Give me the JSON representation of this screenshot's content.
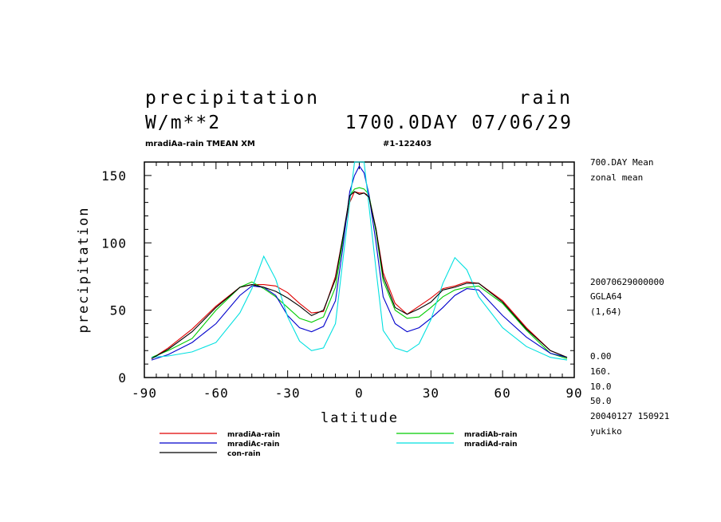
{
  "header": {
    "var_name": "precipitation",
    "var_tag": "rain",
    "units": "W/m**2",
    "date": "1700.0DAY 07/06/29",
    "subtitle": "mradiAa-rain TMEAN XM",
    "run_id": "#1-122403"
  },
  "side_info": {
    "lines_top": [
      "700.DAY Mean",
      "zonal mean"
    ],
    "lines_mid": [
      "20070629000000",
      "GGLA64",
      "(1,64)"
    ],
    "lines_bottom": [
      "0.00",
      "160.",
      "10.0",
      "50.0",
      "20040127 150921",
      "yukiko"
    ]
  },
  "chart_data": {
    "type": "line",
    "xlabel": "latitude",
    "ylabel": "precipitation",
    "xlim": [
      -90,
      90
    ],
    "ylim": [
      0,
      160
    ],
    "xticks": [
      -90,
      -60,
      -30,
      0,
      30,
      60,
      90
    ],
    "yticks": [
      0,
      50,
      100,
      150
    ],
    "x": [
      -87,
      -80,
      -70,
      -60,
      -50,
      -45,
      -40,
      -35,
      -30,
      -25,
      -20,
      -15,
      -10,
      -7,
      -4,
      -2,
      0,
      2,
      4,
      7,
      10,
      15,
      20,
      25,
      30,
      35,
      40,
      45,
      50,
      60,
      70,
      80,
      87
    ],
    "series": [
      {
        "name": "mradiAa-rain",
        "color": "#e00000",
        "values": [
          14,
          22,
          36,
          53,
          67,
          69,
          69,
          68,
          63,
          55,
          48,
          49,
          75,
          103,
          130,
          138,
          137,
          137,
          135,
          110,
          78,
          55,
          47,
          53,
          59,
          66,
          68,
          71,
          70,
          57,
          37,
          20,
          15
        ]
      },
      {
        "name": "mradiAb-rain",
        "color": "#00cc00",
        "values": [
          15,
          20,
          29,
          50,
          67,
          71,
          66,
          60,
          52,
          44,
          41,
          45,
          67,
          100,
          135,
          140,
          141,
          140,
          136,
          108,
          72,
          50,
          44,
          45,
          52,
          60,
          65,
          67,
          68,
          55,
          35,
          18,
          14
        ]
      },
      {
        "name": "mradiAc-rain",
        "color": "#0000cc",
        "values": [
          13,
          17,
          26,
          40,
          61,
          68,
          67,
          61,
          46,
          37,
          34,
          38,
          57,
          95,
          138,
          150,
          157,
          152,
          136,
          100,
          60,
          40,
          34,
          37,
          44,
          52,
          61,
          66,
          65,
          46,
          30,
          18,
          15
        ]
      },
      {
        "name": "mradiAd-rain",
        "color": "#00e0e0",
        "values": [
          15,
          16,
          19,
          26,
          48,
          66,
          90,
          73,
          45,
          27,
          20,
          22,
          40,
          85,
          130,
          160,
          160,
          160,
          128,
          80,
          35,
          22,
          19,
          25,
          43,
          70,
          89,
          80,
          60,
          37,
          23,
          15,
          13
        ]
      },
      {
        "name": "con-rain",
        "color": "#000000",
        "values": [
          14,
          21,
          34,
          52,
          67,
          69,
          67,
          64,
          59,
          53,
          46,
          50,
          73,
          103,
          135,
          138,
          136,
          137,
          134,
          110,
          75,
          52,
          47,
          51,
          56,
          65,
          67,
          70,
          70,
          56,
          36,
          20,
          15
        ]
      }
    ]
  }
}
